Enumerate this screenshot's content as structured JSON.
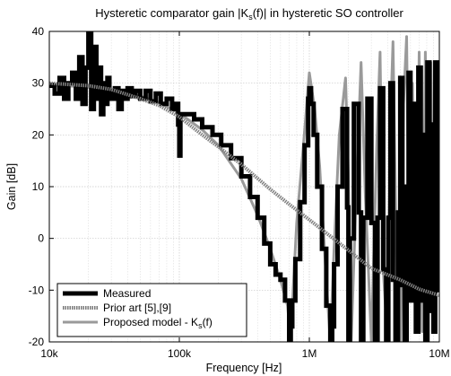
{
  "chart_data": {
    "type": "line",
    "title": "Hysteretic comparator gain |K_s(f)| in hysteretic SO controller",
    "title_main": "Hysteretic comparator gain |K",
    "title_sub": "s",
    "title_tail": "(f)| in hysteretic SO controller",
    "xlabel": "Frequency [Hz]",
    "ylabel": "Gain [dB]",
    "x_scale": "log",
    "xlim": [
      10000,
      10000000
    ],
    "ylim": [
      -20,
      40
    ],
    "grid": true,
    "legend_position": "bottom-left",
    "x_ticks": [
      {
        "value": 10000,
        "label": "10k"
      },
      {
        "value": 100000,
        "label": "100k"
      },
      {
        "value": 1000000,
        "label": "1M"
      },
      {
        "value": 10000000,
        "label": "10M"
      }
    ],
    "y_ticks": [
      {
        "value": 40,
        "label": "40"
      },
      {
        "value": 30,
        "label": "30"
      },
      {
        "value": 20,
        "label": "20"
      },
      {
        "value": 10,
        "label": "10"
      },
      {
        "value": 0,
        "label": "0"
      },
      {
        "value": -10,
        "label": "-10"
      },
      {
        "value": -20,
        "label": "-20"
      }
    ],
    "series": [
      {
        "name": "Measured",
        "color": "#000000",
        "style": "solid-thick",
        "x": [
          10000,
          11000,
          12000,
          13000,
          14000,
          15000,
          16000,
          17000,
          18000,
          19000,
          20000,
          21000,
          22000,
          23000,
          24000,
          25000,
          26000,
          27000,
          28000,
          29000,
          30000,
          32000,
          34000,
          36000,
          38000,
          40000,
          43000,
          46000,
          50000,
          55000,
          60000,
          66000,
          72000,
          80000,
          88000,
          95000,
          98000,
          100000,
          102000,
          110000,
          130000,
          150000,
          180000,
          210000,
          250000,
          300000,
          350000,
          400000,
          450000,
          500000,
          550000,
          600000,
          650000,
          700000,
          720000,
          740000,
          780000,
          850000,
          920000,
          980000,
          1000000,
          1030000,
          1080000,
          1150000,
          1250000,
          1350000,
          1450000,
          1500000,
          1550000,
          1650000,
          1800000,
          1950000,
          2000000,
          2050000,
          2200000,
          2400000,
          2500000,
          2600000,
          2800000,
          3000000,
          3200000,
          3350000,
          3500000,
          3700000,
          3900000,
          4050000,
          4200000,
          4400000,
          4600000,
          4800000,
          5000000,
          5200000,
          5400000,
          5600000,
          5800000,
          6000000,
          6300000,
          6600000,
          6900000,
          7200000,
          7500000,
          7800000,
          8100000,
          8400000,
          8700000,
          9000000,
          9300000,
          9600000,
          10000000
        ],
        "y": [
          29.5,
          28,
          31,
          27,
          30,
          32,
          27,
          35,
          26,
          33,
          40,
          25,
          37,
          27,
          33,
          24,
          30,
          26,
          31,
          28,
          27,
          29,
          25,
          28.5,
          27,
          29,
          27.5,
          28.5,
          27,
          28.5,
          26.5,
          28,
          26,
          27,
          25,
          26,
          22,
          16,
          24,
          24,
          23,
          21.5,
          20,
          18,
          15.5,
          12,
          8,
          4,
          -1,
          -5,
          -7,
          -8,
          -12,
          -20,
          -17,
          -12,
          -4,
          7,
          18,
          27,
          29,
          26,
          20,
          10,
          -2,
          -13,
          -20,
          -17,
          -5,
          10,
          25,
          6,
          -20,
          0,
          26,
          5,
          -20,
          4,
          27,
          3,
          -20,
          4,
          29,
          -6,
          -20,
          4,
          30,
          -8,
          -20,
          5,
          31,
          -9,
          -20,
          10,
          32,
          -12,
          26,
          -18,
          33,
          -12,
          20,
          -20,
          34,
          -14,
          22,
          -18,
          34,
          -10,
          20
        ]
      },
      {
        "name": "Prior art [5],[9]",
        "color": "#808080",
        "style": "dotted",
        "x": [
          10000,
          20000,
          30000,
          50000,
          70000,
          100000,
          150000,
          200000,
          300000,
          500000,
          700000,
          1000000,
          2000000,
          3000000,
          5000000,
          7000000,
          10000000
        ],
        "y": [
          30,
          29.5,
          28.8,
          27,
          25.7,
          23.5,
          20,
          17.7,
          14.3,
          9.5,
          6.6,
          3.6,
          -2.3,
          -5.8,
          -8,
          -9.8,
          -11
        ]
      },
      {
        "name": "Proposed model - K_s(f)",
        "color": "#9a9a9a",
        "style": "solid",
        "x": [
          10000,
          20000,
          30000,
          50000,
          70000,
          100000,
          150000,
          200000,
          300000,
          400000,
          500000,
          600000,
          680000,
          720000,
          750000,
          800000,
          900000,
          1000000,
          1100000,
          1200000,
          1350000,
          1450000,
          1550000,
          1700000,
          1900000,
          2000000,
          2100000,
          2300000,
          2500000,
          2700000,
          3000000,
          3300000,
          3500000,
          3700000,
          4000000,
          4200000,
          4400000,
          4700000,
          5000000,
          5300000,
          5600000,
          5900000,
          6200000,
          6600000,
          7000000,
          7400000,
          7800000,
          8200000,
          8600000,
          9000000,
          9500000,
          10000000
        ],
        "y": [
          29.7,
          29.2,
          28.6,
          27.5,
          26.2,
          24.2,
          21,
          18,
          11.5,
          4.5,
          -2,
          -8,
          -13,
          -20,
          -10,
          3,
          18,
          32,
          25,
          14,
          -8,
          -20,
          -2,
          20,
          31,
          12,
          -20,
          10,
          34,
          8,
          -20,
          18,
          36,
          -6,
          -20,
          22,
          38,
          -8,
          -20,
          26,
          39,
          -10,
          30,
          -14,
          36,
          -18,
          36,
          -16,
          34,
          -12,
          30,
          -10
        ]
      }
    ],
    "legend": [
      {
        "label": "Measured"
      },
      {
        "label": "Prior art [5],[9]"
      },
      {
        "label": "Proposed model - K",
        "sub": "s",
        "tail": "(f)"
      }
    ]
  }
}
